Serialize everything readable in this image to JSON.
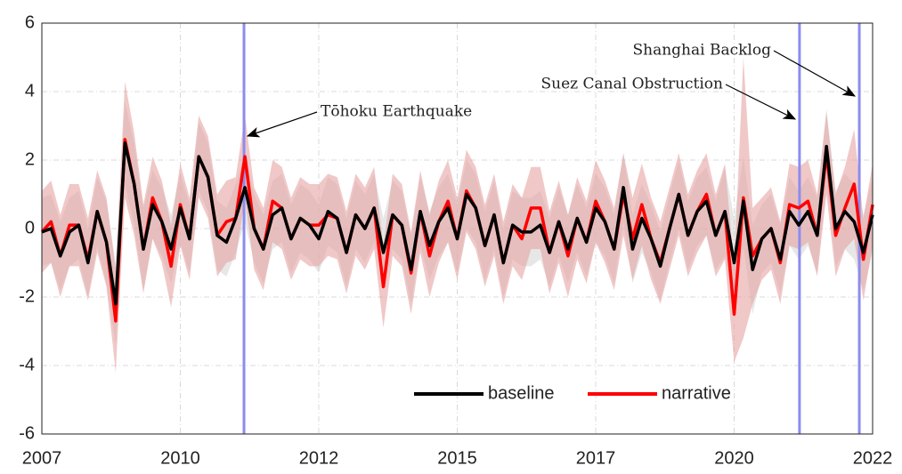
{
  "chart_data": {
    "type": "line",
    "xlim": [
      2007,
      2022
    ],
    "ylim": [
      -6,
      6
    ],
    "xticks": [
      {
        "value": 2007,
        "label": "2007"
      },
      {
        "value": 2009.5,
        "label": "2010"
      },
      {
        "value": 2012,
        "label": "2012"
      },
      {
        "value": 2014.5,
        "label": "2015"
      },
      {
        "value": 2017,
        "label": "2017"
      },
      {
        "value": 2019.5,
        "label": "2020"
      },
      {
        "value": 2022,
        "label": "2022"
      }
    ],
    "yticks": [
      -6,
      -4,
      -2,
      0,
      2,
      4,
      6
    ],
    "grid": true,
    "legend": "lower right",
    "x_start": 2007,
    "x_step_months": 2,
    "series": [
      {
        "name": "baseline",
        "color": "#000000",
        "band_color": "#d4d4d4",
        "values": [
          -0.1,
          0.0,
          -0.8,
          -0.1,
          0.1,
          -1.0,
          0.5,
          -0.4,
          -2.2,
          2.5,
          1.3,
          -0.6,
          0.7,
          0.2,
          -0.6,
          0.6,
          -0.3,
          2.1,
          1.5,
          -0.2,
          -0.4,
          0.3,
          1.2,
          0.0,
          -0.6,
          0.4,
          0.6,
          -0.3,
          0.3,
          0.1,
          -0.3,
          0.5,
          0.3,
          -0.7,
          0.4,
          0.0,
          0.6,
          -0.7,
          0.4,
          0.1,
          -1.2,
          0.5,
          -0.5,
          0.2,
          0.6,
          -0.3,
          1.0,
          0.6,
          -0.5,
          0.4,
          -1.0,
          0.1,
          -0.1,
          -0.1,
          0.1,
          -0.7,
          0.2,
          -0.6,
          0.3,
          -0.4,
          0.6,
          0.2,
          -0.6,
          1.2,
          -0.6,
          0.3,
          -0.3,
          -1.1,
          0.0,
          1.0,
          -0.2,
          0.5,
          0.8,
          -0.2,
          0.5,
          -1.0,
          0.8,
          -1.2,
          -0.3,
          0.0,
          -0.9,
          0.5,
          0.1,
          0.5,
          -0.2,
          2.4,
          0.0,
          0.5,
          0.2,
          -0.7,
          0.4
        ],
        "spread": [
          1.0,
          1.0,
          1.0,
          1.0,
          1.0,
          1.0,
          1.0,
          1.2,
          1.2,
          1.2,
          1.2,
          1.2,
          1.0,
          1.0,
          1.0,
          1.0,
          1.0,
          1.0,
          1.0,
          1.0,
          1.0,
          1.0,
          1.0,
          1.0,
          1.0,
          1.0,
          1.0,
          1.0,
          1.0,
          1.0,
          1.0,
          1.0,
          1.0,
          1.0,
          1.0,
          1.0,
          1.0,
          1.0,
          1.0,
          1.0,
          1.0,
          1.0,
          1.0,
          1.0,
          1.0,
          1.0,
          1.0,
          1.0,
          1.0,
          1.0,
          1.0,
          1.0,
          1.0,
          1.0,
          1.0,
          1.0,
          1.0,
          1.0,
          1.0,
          1.0,
          1.0,
          1.0,
          1.0,
          1.0,
          1.0,
          1.0,
          1.0,
          1.0,
          1.0,
          1.0,
          1.0,
          1.0,
          1.0,
          1.0,
          1.3,
          1.3,
          1.3,
          1.3,
          1.0,
          1.0,
          1.0,
          1.0,
          1.0,
          1.0,
          1.1,
          1.1,
          1.1,
          1.1,
          1.1,
          1.1,
          1.1
        ]
      },
      {
        "name": "narrative",
        "color": "#ff0000",
        "band_color": "#e6a3a3",
        "values": [
          -0.1,
          0.2,
          -0.8,
          0.1,
          0.1,
          -0.9,
          0.5,
          -0.4,
          -2.7,
          2.6,
          1.3,
          -0.6,
          0.9,
          0.2,
          -1.1,
          0.7,
          -0.3,
          2.1,
          1.5,
          -0.2,
          0.2,
          0.3,
          2.1,
          0.0,
          -0.6,
          0.8,
          0.6,
          -0.3,
          0.3,
          0.1,
          0.1,
          0.4,
          0.3,
          -0.7,
          0.4,
          0.0,
          0.6,
          -1.7,
          0.4,
          0.1,
          -1.3,
          0.5,
          -0.8,
          0.2,
          0.8,
          -0.3,
          1.1,
          0.6,
          -0.5,
          0.4,
          -1.0,
          0.1,
          -0.3,
          0.6,
          0.6,
          -0.7,
          0.2,
          -0.8,
          0.3,
          -0.4,
          0.8,
          0.2,
          -0.6,
          1.0,
          -0.3,
          0.7,
          -0.3,
          -1.0,
          0.0,
          1.0,
          -0.2,
          0.5,
          1.0,
          -0.2,
          0.5,
          -2.5,
          0.9,
          -0.8,
          -0.3,
          0.0,
          -1.0,
          0.7,
          0.6,
          0.8,
          -0.2,
          2.2,
          -0.2,
          0.6,
          1.3,
          -0.9,
          0.7
        ],
        "spread": [
          1.2,
          1.2,
          1.2,
          1.2,
          1.2,
          1.2,
          1.2,
          1.3,
          1.5,
          1.7,
          1.5,
          1.3,
          1.2,
          1.2,
          1.2,
          1.2,
          1.2,
          1.2,
          1.2,
          1.2,
          1.2,
          1.2,
          1.2,
          1.2,
          1.2,
          1.2,
          1.2,
          1.2,
          1.2,
          1.2,
          1.2,
          1.2,
          1.2,
          1.2,
          1.2,
          1.2,
          1.2,
          1.2,
          1.2,
          1.2,
          1.2,
          1.2,
          1.2,
          1.2,
          1.2,
          1.2,
          1.2,
          1.2,
          1.2,
          1.2,
          1.2,
          1.2,
          1.2,
          1.2,
          1.2,
          1.2,
          1.2,
          1.2,
          1.2,
          1.2,
          1.2,
          1.2,
          1.2,
          1.2,
          1.2,
          1.2,
          1.2,
          1.2,
          1.2,
          1.2,
          1.2,
          1.2,
          1.2,
          1.2,
          1.4,
          1.4,
          4.1,
          1.4,
          1.2,
          1.2,
          1.2,
          1.2,
          1.2,
          1.2,
          1.2,
          1.2,
          1.2,
          1.2,
          1.6,
          1.2,
          1.2
        ]
      }
    ],
    "event_color": "#8c8cf0",
    "annotations": [
      {
        "text": "Tōhoku Earthquake",
        "x": 2010.65
      },
      {
        "text": "Suez Canal Obstruction",
        "x": 2020.68
      },
      {
        "text": "Shanghai Backlog",
        "x": 2021.76
      }
    ]
  }
}
